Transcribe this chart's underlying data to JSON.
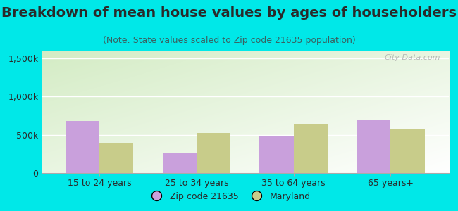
{
  "title": "Breakdown of mean house values by ages of householders",
  "subtitle": "(Note: State values scaled to Zip code 21635 population)",
  "categories": [
    "15 to 24 years",
    "25 to 34 years",
    "35 to 64 years",
    "65 years+"
  ],
  "zip_values": [
    680000,
    270000,
    490000,
    700000
  ],
  "state_values": [
    400000,
    520000,
    640000,
    570000
  ],
  "zip_color": "#c9a0dc",
  "state_color": "#c8cc8a",
  "zip_label": "Zip code 21635",
  "state_label": "Maryland",
  "ylim": [
    0,
    1600000
  ],
  "yticks": [
    0,
    500000,
    1000000,
    1500000
  ],
  "ytick_labels": [
    "0",
    "500k",
    "1,000k",
    "1,500k"
  ],
  "background_outer": "#00e8e8",
  "bar_width": 0.35,
  "watermark": "City-Data.com",
  "title_fontsize": 14,
  "subtitle_fontsize": 9,
  "tick_fontsize": 9,
  "text_color": "#2a2a2a",
  "subtitle_color": "#3a6060"
}
